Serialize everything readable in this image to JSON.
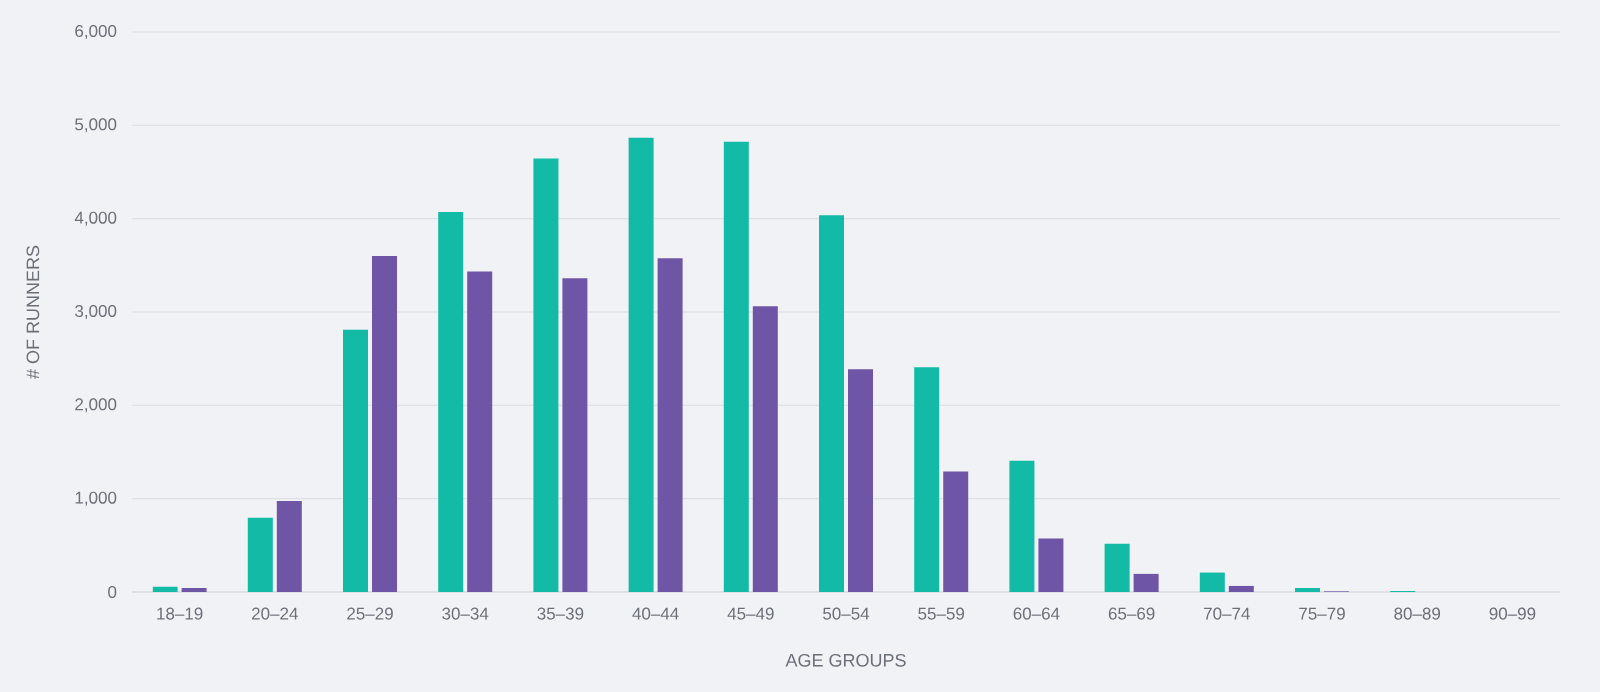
{
  "chart_data": {
    "type": "bar",
    "xlabel": "AGE GROUPS",
    "ylabel": "# OF RUNNERS",
    "categories": [
      "18–19",
      "20–24",
      "25–29",
      "30–34",
      "35–39",
      "40–44",
      "45–49",
      "50–54",
      "55–59",
      "60–64",
      "65–69",
      "70–74",
      "75–79",
      "80–89",
      "90–99"
    ],
    "series": [
      {
        "color": "#13bba6",
        "values": [
          57,
          796,
          2810,
          4072,
          4645,
          4867,
          4824,
          4036,
          2409,
          1405,
          516,
          208,
          43,
          10,
          0
        ]
      },
      {
        "color": "#6f55a5",
        "values": [
          43,
          975,
          3599,
          3434,
          3362,
          3577,
          3061,
          2387,
          1290,
          573,
          194,
          65,
          7,
          0,
          0
        ]
      }
    ],
    "ylim": [
      0,
      6000
    ],
    "yticks": [
      {
        "value": 0,
        "label": "0"
      },
      {
        "value": 1000,
        "label": "1,000"
      },
      {
        "value": 2000,
        "label": "2,000"
      },
      {
        "value": 3000,
        "label": "3,000"
      },
      {
        "value": 4000,
        "label": "4,000"
      },
      {
        "value": 5000,
        "label": "5,000"
      },
      {
        "value": 6000,
        "label": "6,000"
      }
    ],
    "grid": "y"
  }
}
